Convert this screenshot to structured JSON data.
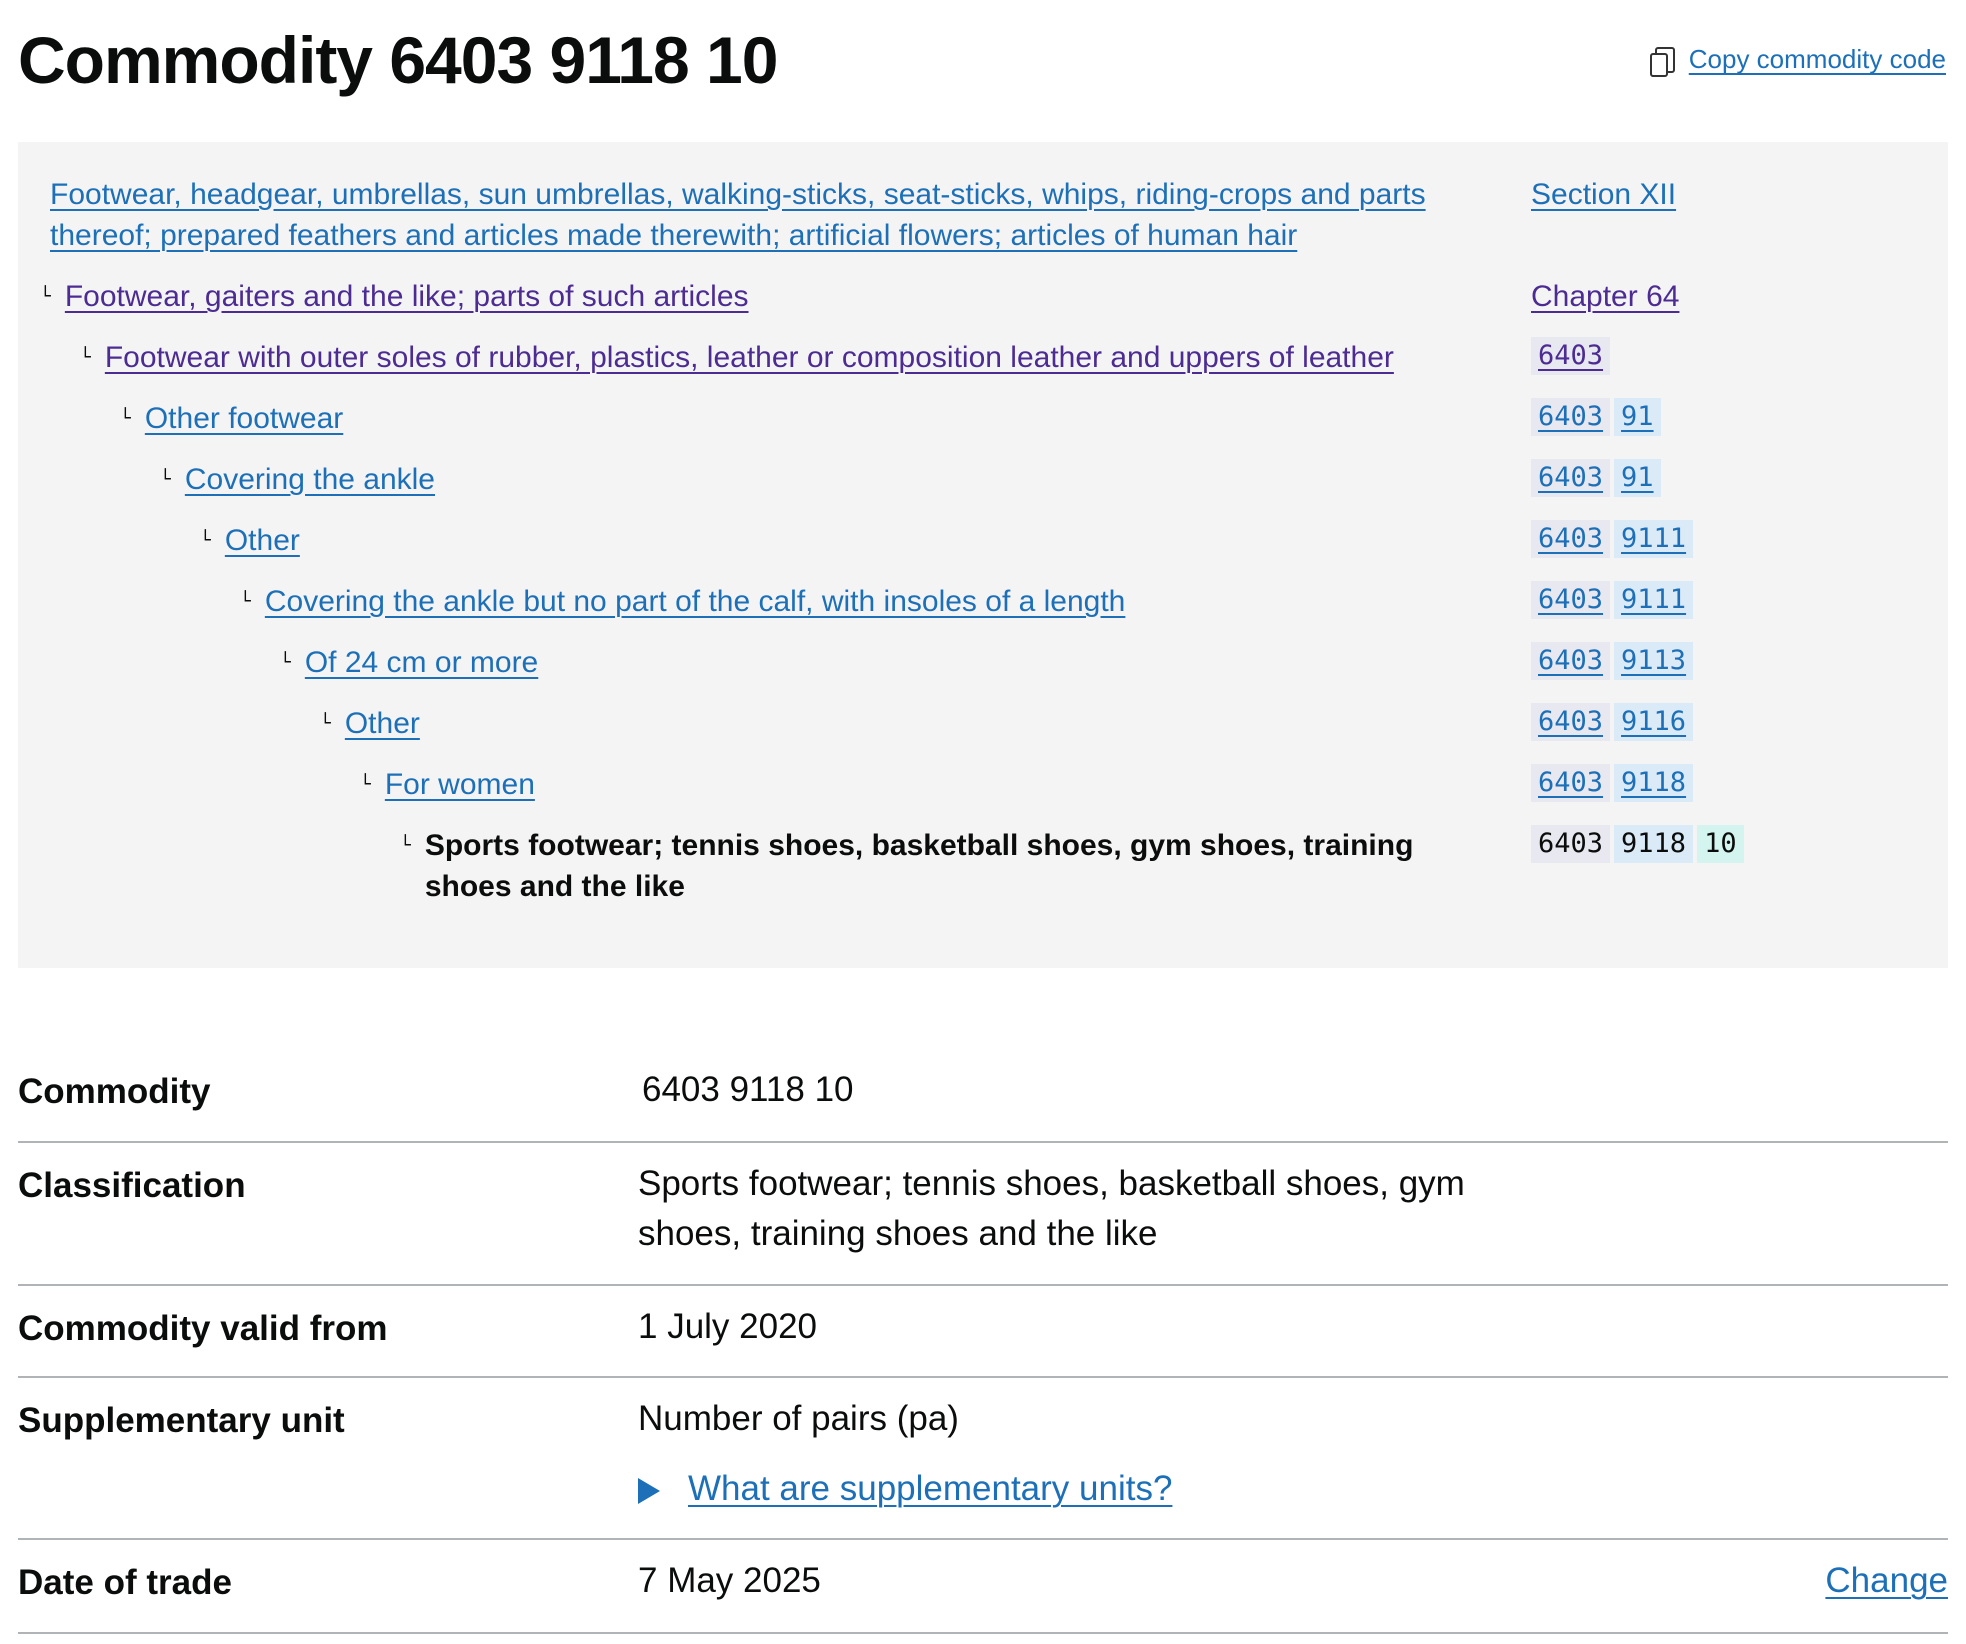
{
  "header": {
    "title": "Commodity 6403 9118 10",
    "copy_label": "Copy commodity code"
  },
  "tree": [
    {
      "label": "Footwear, headgear, umbrellas, sun umbrellas, walking-sticks, seat-sticks, whips, riding-crops and parts thereof; prepared feathers and articles made therewith; artificial flowers; articles of human hair",
      "ref": "Section XII",
      "visited": false
    },
    {
      "label": "Footwear, gaiters and the like; parts of such articles",
      "ref": "Chapter 64",
      "visited": true
    },
    {
      "label": "Footwear with outer soles of rubber, plastics, leather or composition leather and uppers of leather",
      "codes": [
        "6403"
      ],
      "visited": true
    },
    {
      "label": "Other footwear",
      "codes": [
        "6403",
        "91"
      ]
    },
    {
      "label": "Covering the ankle",
      "codes": [
        "6403",
        "91"
      ]
    },
    {
      "label": "Other",
      "codes": [
        "6403",
        "9111"
      ]
    },
    {
      "label": "Covering the ankle but no part of the calf, with insoles of a length",
      "codes": [
        "6403",
        "9111"
      ]
    },
    {
      "label": "Of 24 cm or more",
      "codes": [
        "6403",
        "9113"
      ]
    },
    {
      "label": "Other",
      "codes": [
        "6403",
        "9116"
      ]
    },
    {
      "label": "For women",
      "codes": [
        "6403",
        "9118"
      ]
    },
    {
      "label": "Sports footwear; tennis shoes, basketball shoes, gym shoes, training shoes and the like",
      "codes": [
        "6403",
        "9118",
        "10"
      ],
      "current": true
    }
  ],
  "summary": {
    "commodity_key": "Commodity",
    "commodity_value": "6403 9118 10",
    "classification_key": "Classification",
    "classification_value": "Sports footwear; tennis shoes, basketball shoes, gym shoes, training shoes and the like",
    "valid_key": "Commodity valid from",
    "valid_value": "1 July 2020",
    "unit_key": "Supplementary unit",
    "unit_value": "Number of pairs (pa)",
    "unit_help": "What are supplementary units?",
    "date_key": "Date of trade",
    "date_value": "7 May 2025",
    "change_label": "Change"
  },
  "colors": {
    "link": "#1d70b8",
    "visited": "#4c2c92",
    "panel": "#f4f4f4"
  }
}
